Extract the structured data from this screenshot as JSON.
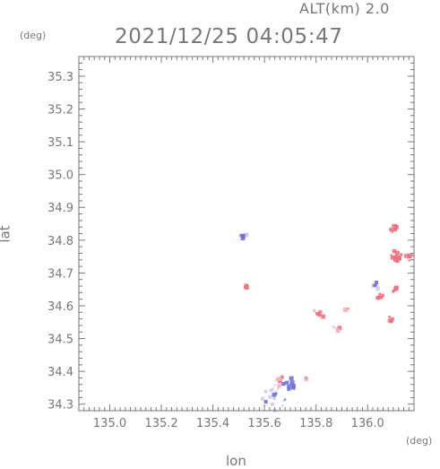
{
  "header": {
    "alt_label": "ALT(km) 2.0",
    "timestamp": "2021/12/25 04:05:47"
  },
  "chart_data": {
    "type": "heatmap",
    "xlabel": "lon",
    "ylabel": "lat",
    "x_unit": "(deg)",
    "y_unit": "(deg)",
    "xlim": [
      134.88,
      136.18
    ],
    "ylim": [
      34.28,
      35.36
    ],
    "x_ticks": [
      "135.0",
      "135.2",
      "135.4",
      "135.6",
      "135.8",
      "136.0"
    ],
    "y_ticks": [
      "34.3",
      "34.4",
      "34.5",
      "34.6",
      "34.7",
      "34.8",
      "34.9",
      "35.0",
      "35.1",
      "35.2",
      "35.3"
    ],
    "grid": false,
    "colors": {
      "positive": "#ee7080",
      "positive_light": "#f6b0b8",
      "negative": "#7070d8",
      "negative_light": "#ccccee",
      "axis": "#777777"
    },
    "echo_patches": [
      {
        "lon": 135.52,
        "lat": 34.815,
        "r": 0.012,
        "sign": "negative",
        "intensity": 0.6
      },
      {
        "lon": 135.53,
        "lat": 34.66,
        "r": 0.006,
        "sign": "positive",
        "intensity": 0.8
      },
      {
        "lon": 135.64,
        "lat": 34.33,
        "r": 0.05,
        "sign": "negative",
        "intensity": 0.25
      },
      {
        "lon": 135.7,
        "lat": 34.36,
        "r": 0.02,
        "sign": "negative",
        "intensity": 0.8
      },
      {
        "lon": 135.66,
        "lat": 34.37,
        "r": 0.015,
        "sign": "positive",
        "intensity": 0.5
      },
      {
        "lon": 135.76,
        "lat": 34.375,
        "r": 0.01,
        "sign": "positive",
        "intensity": 0.5
      },
      {
        "lon": 135.81,
        "lat": 34.575,
        "r": 0.02,
        "sign": "positive",
        "intensity": 0.6
      },
      {
        "lon": 135.88,
        "lat": 34.53,
        "r": 0.015,
        "sign": "positive",
        "intensity": 0.4
      },
      {
        "lon": 135.92,
        "lat": 34.585,
        "r": 0.008,
        "sign": "positive",
        "intensity": 0.6
      },
      {
        "lon": 136.05,
        "lat": 34.63,
        "r": 0.016,
        "sign": "positive",
        "intensity": 0.9
      },
      {
        "lon": 136.03,
        "lat": 34.66,
        "r": 0.012,
        "sign": "negative",
        "intensity": 0.5
      },
      {
        "lon": 136.11,
        "lat": 34.65,
        "r": 0.012,
        "sign": "positive",
        "intensity": 0.9
      },
      {
        "lon": 136.09,
        "lat": 34.555,
        "r": 0.012,
        "sign": "positive",
        "intensity": 0.9
      },
      {
        "lon": 136.11,
        "lat": 34.75,
        "r": 0.025,
        "sign": "positive",
        "intensity": 1.0
      },
      {
        "lon": 136.1,
        "lat": 34.835,
        "r": 0.015,
        "sign": "positive",
        "intensity": 1.0
      },
      {
        "lon": 136.16,
        "lat": 34.75,
        "r": 0.018,
        "sign": "positive",
        "intensity": 0.6
      }
    ]
  }
}
